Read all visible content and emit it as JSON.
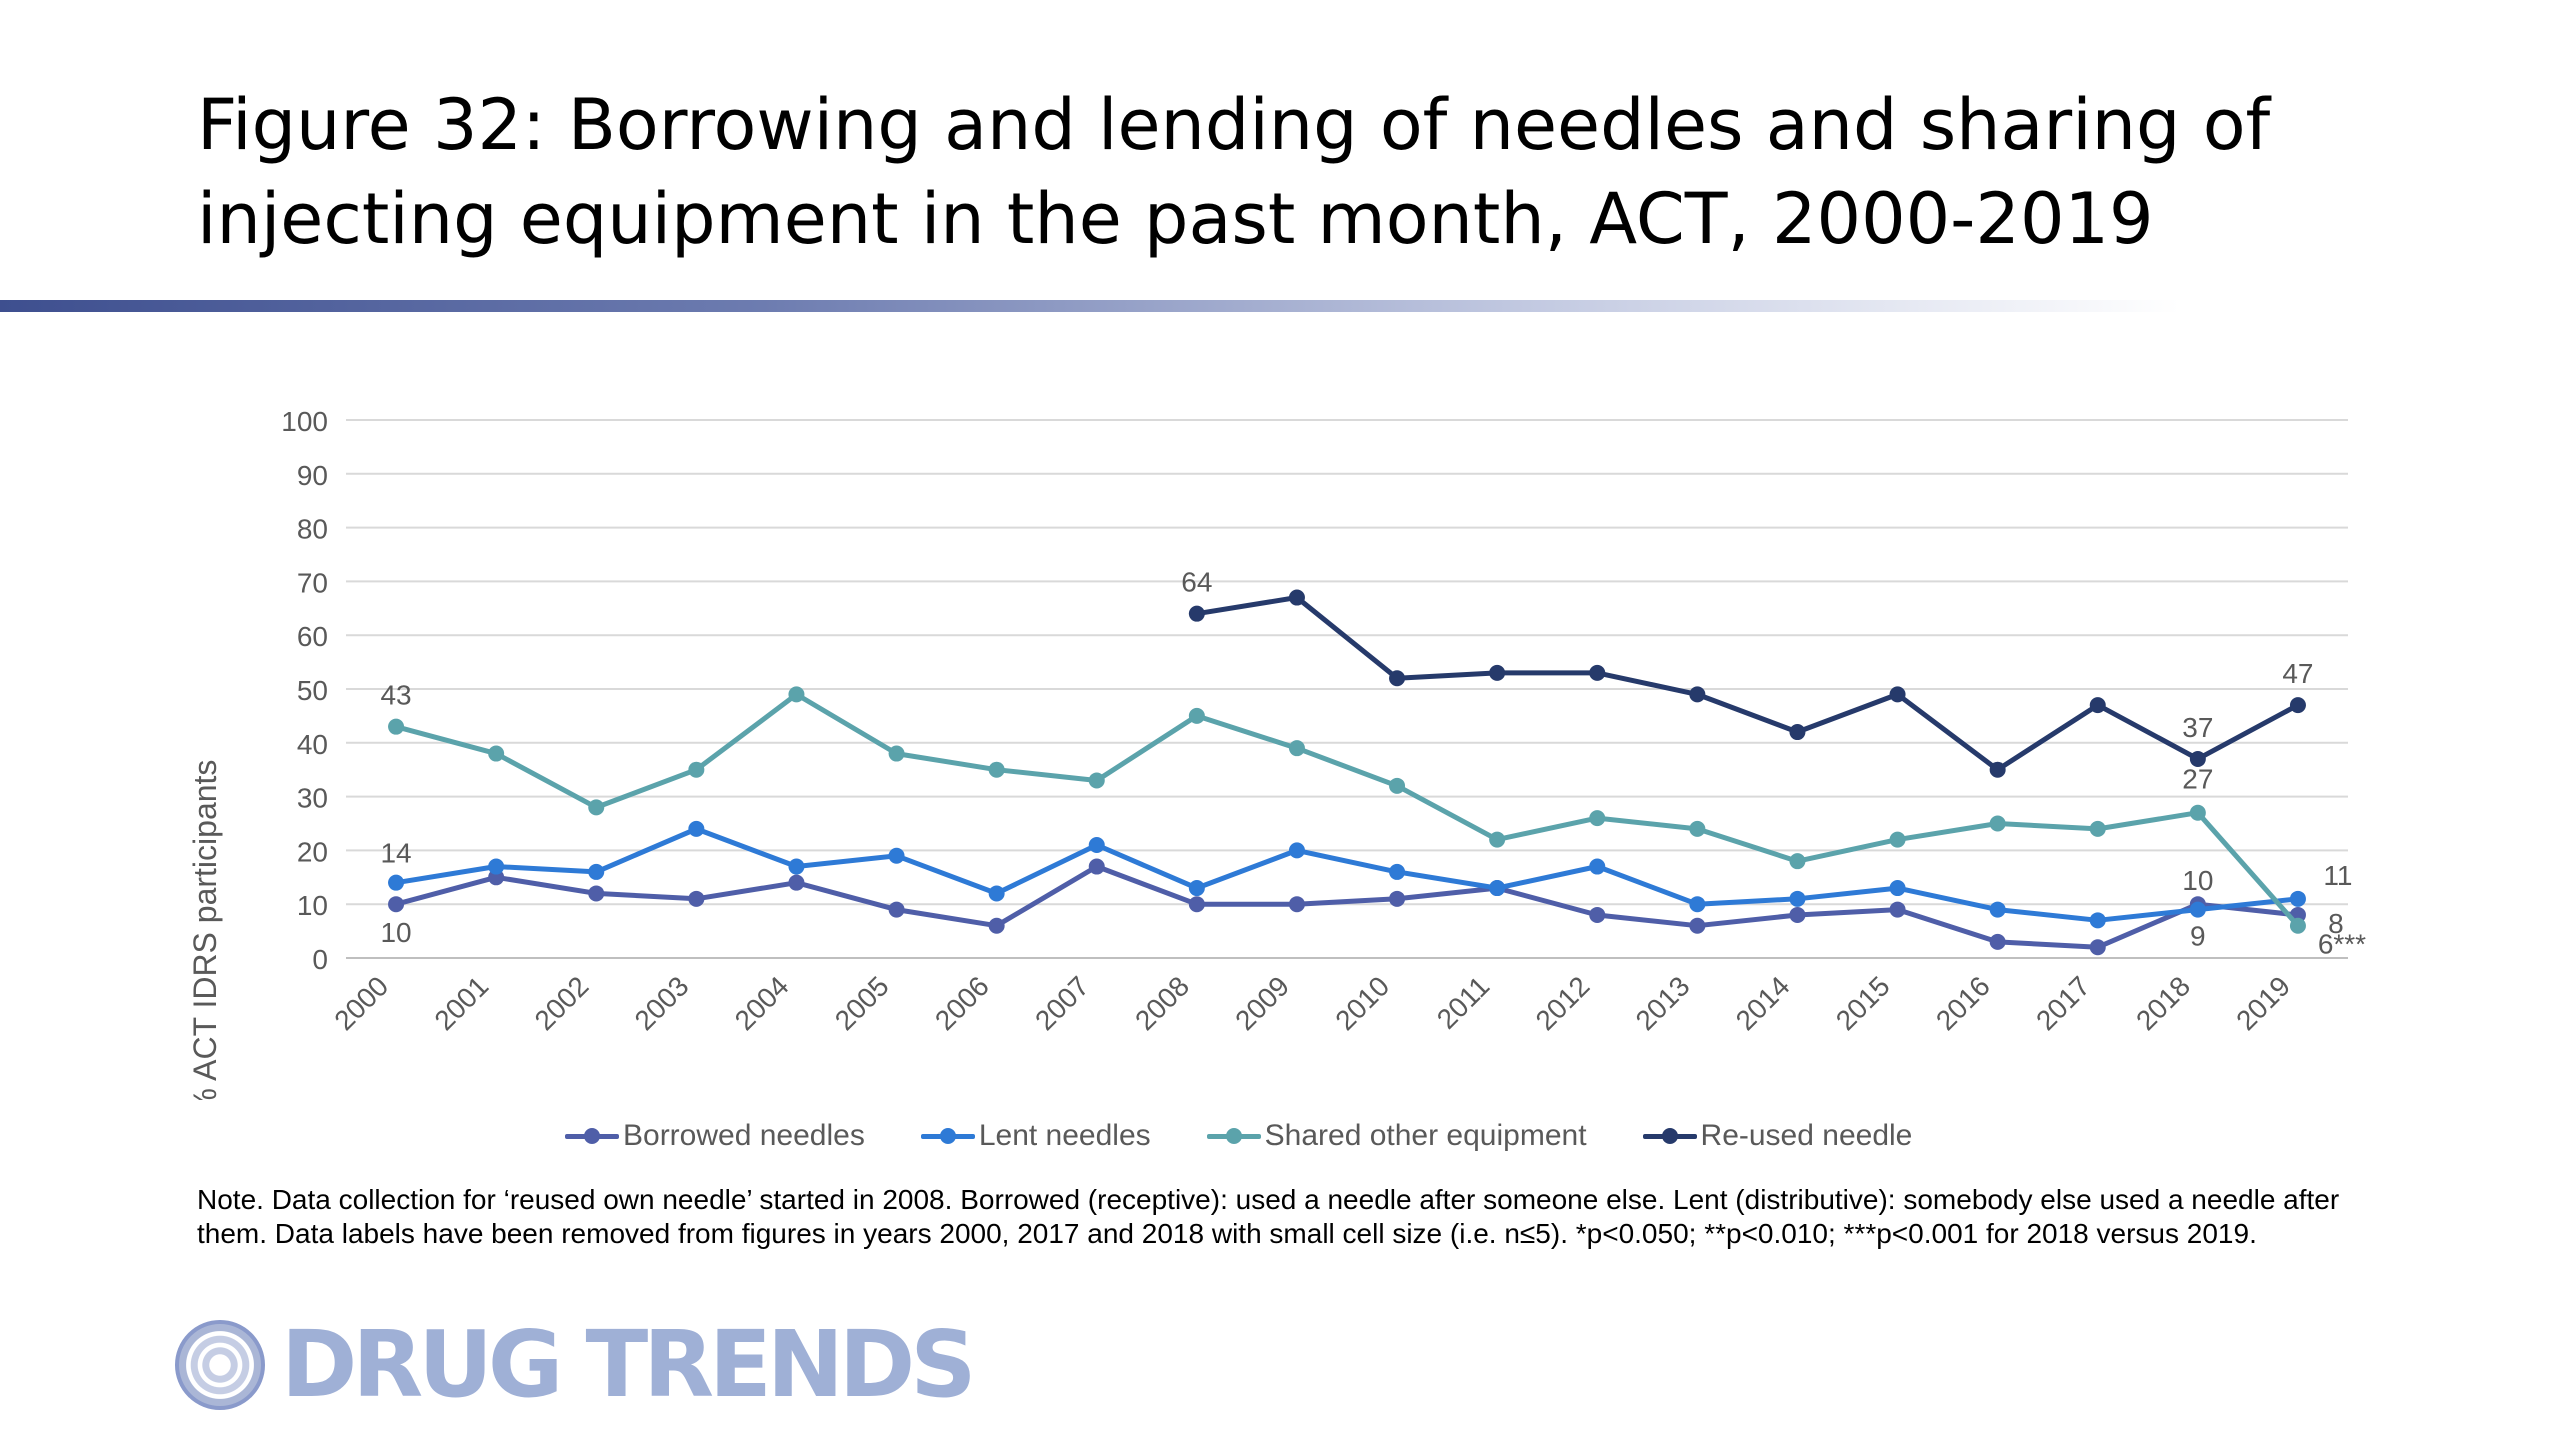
{
  "slide": {
    "title": "Figure 32: Borrowing and lending of needles and sharing of injecting equipment in the past month, ACT, 2000-2019",
    "note": "Note. Data collection for ‘reused own needle’ started in 2008. Borrowed (receptive): used a needle after someone else. Lent (distributive): somebody else used a needle after them. Data labels have been removed from figures in years 2000, 2017 and 2018 with small cell size (i.e. n≤5). *p<0.050; **p<0.010; ***p<0.001 for 2018 versus 2019.",
    "logo_text": "DRUG TRENDS",
    "logo_icon": "globe-icon"
  },
  "chart_data": {
    "type": "line",
    "ylabel": "% ACT IDRS participants",
    "xlabel": "",
    "ylim": [
      0,
      100
    ],
    "yticks": [
      0,
      10,
      20,
      30,
      40,
      50,
      60,
      70,
      80,
      90,
      100
    ],
    "grid": true,
    "legend_position": "bottom",
    "categories": [
      "2000",
      "2001",
      "2002",
      "2003",
      "2004",
      "2005",
      "2006",
      "2007",
      "2008",
      "2009",
      "2010",
      "2011",
      "2012",
      "2013",
      "2014",
      "2015",
      "2016",
      "2017",
      "2018",
      "2019"
    ],
    "series": [
      {
        "name": "Borrowed needles",
        "color": "#4f5ea8",
        "values": [
          10,
          15,
          12,
          11,
          14,
          9,
          6,
          17,
          10,
          10,
          11,
          13,
          8,
          6,
          8,
          9,
          3,
          2,
          10,
          8
        ],
        "labels": [
          {
            "index": 0,
            "text": "10"
          },
          {
            "index": 18,
            "text": "10"
          },
          {
            "index": 19,
            "text": "8"
          }
        ]
      },
      {
        "name": "Lent needles",
        "color": "#2e7ad6",
        "values": [
          14,
          17,
          16,
          24,
          17,
          19,
          12,
          21,
          13,
          20,
          16,
          13,
          17,
          10,
          11,
          13,
          9,
          7,
          9,
          11
        ],
        "labels": [
          {
            "index": 0,
            "text": "14"
          },
          {
            "index": 18,
            "text": "9"
          },
          {
            "index": 19,
            "text": "11"
          }
        ]
      },
      {
        "name": "Shared other equipment",
        "color": "#5ba3ab",
        "values": [
          43,
          38,
          28,
          35,
          49,
          38,
          35,
          33,
          45,
          39,
          32,
          22,
          26,
          24,
          18,
          22,
          25,
          24,
          27,
          6
        ],
        "labels": [
          {
            "index": 0,
            "text": "43"
          },
          {
            "index": 18,
            "text": "27"
          },
          {
            "index": 19,
            "text": "6***"
          }
        ]
      },
      {
        "name": "Re-used needle",
        "color": "#263a6b",
        "values": [
          null,
          null,
          null,
          null,
          null,
          null,
          null,
          null,
          64,
          67,
          52,
          53,
          53,
          49,
          42,
          49,
          35,
          47,
          37,
          47
        ],
        "labels": [
          {
            "index": 8,
            "text": "64"
          },
          {
            "index": 18,
            "text": "37"
          },
          {
            "index": 19,
            "text": "47"
          }
        ]
      }
    ]
  }
}
